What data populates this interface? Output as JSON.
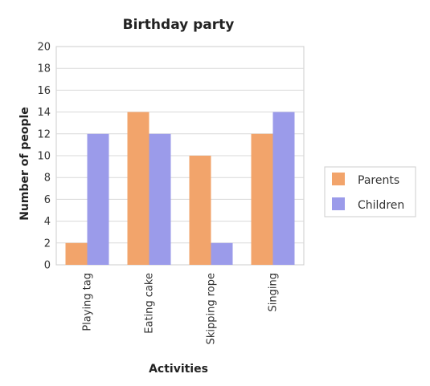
{
  "chart_data": {
    "type": "bar",
    "title": "Birthday party",
    "xlabel": "Activities",
    "ylabel": "Number of people",
    "categories": [
      "Playing tag",
      "Eating cake",
      "Skipping rope",
      "Singing"
    ],
    "series": [
      {
        "name": "Parents",
        "values": [
          2,
          14,
          10,
          12
        ],
        "color": "#f2a46b"
      },
      {
        "name": "Children",
        "values": [
          12,
          12,
          2,
          14
        ],
        "color": "#9b9bea"
      }
    ],
    "ylim": [
      0,
      20
    ],
    "yticks": [
      "0",
      "2",
      "4",
      "6",
      "8",
      "10",
      "12",
      "14",
      "16",
      "18",
      "20"
    ],
    "grid": true,
    "legend_position": "right"
  }
}
